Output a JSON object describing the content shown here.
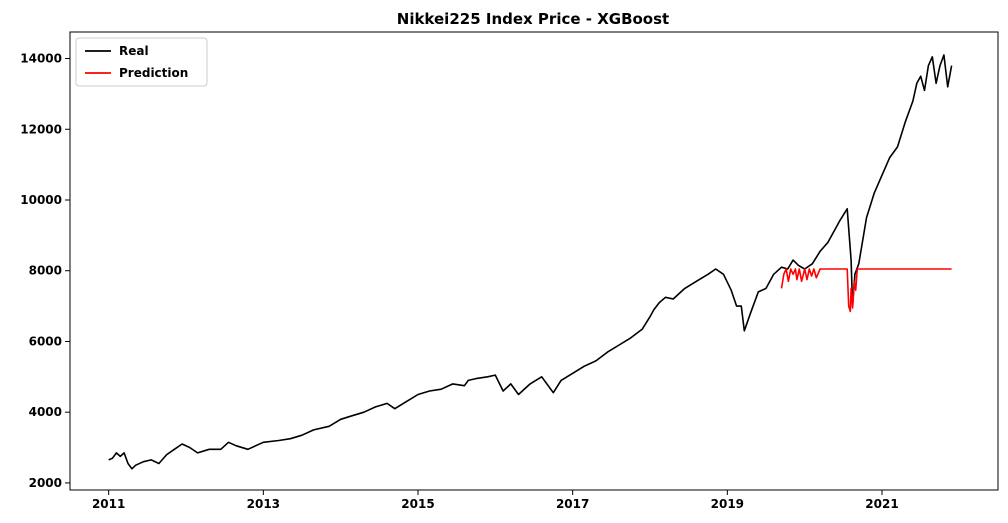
{
  "chart_data": {
    "type": "line",
    "title": "Nikkei225 Index Price - XGBoost",
    "xlabel": "",
    "ylabel": "",
    "xlim": [
      2010.5,
      2022.5
    ],
    "ylim": [
      1800,
      14750
    ],
    "xticks": [
      2011,
      2013,
      2015,
      2017,
      2019,
      2021
    ],
    "xtick_labels": [
      "2011",
      "2013",
      "2015",
      "2017",
      "2019",
      "2021"
    ],
    "yticks": [
      2000,
      4000,
      6000,
      8000,
      10000,
      12000,
      14000
    ],
    "ytick_labels": [
      "2000",
      "4000",
      "6000",
      "8000",
      "10000",
      "12000",
      "14000"
    ],
    "grid": false,
    "legend": {
      "position": "top-left",
      "entries": [
        "Real",
        "Prediction"
      ]
    },
    "series": [
      {
        "name": "Real",
        "color": "#000000",
        "x": [
          2011.0,
          2011.05,
          2011.1,
          2011.15,
          2011.2,
          2011.25,
          2011.3,
          2011.35,
          2011.45,
          2011.55,
          2011.65,
          2011.75,
          2011.85,
          2011.95,
          2012.05,
          2012.15,
          2012.3,
          2012.45,
          2012.55,
          2012.65,
          2012.8,
          2013.0,
          2013.2,
          2013.35,
          2013.5,
          2013.65,
          2013.85,
          2014.0,
          2014.15,
          2014.3,
          2014.45,
          2014.6,
          2014.7,
          2014.85,
          2015.0,
          2015.15,
          2015.3,
          2015.45,
          2015.6,
          2015.65,
          2015.75,
          2015.9,
          2016.0,
          2016.1,
          2016.2,
          2016.3,
          2016.45,
          2016.6,
          2016.75,
          2016.85,
          2017.0,
          2017.15,
          2017.3,
          2017.45,
          2017.6,
          2017.75,
          2017.9,
          2018.0,
          2018.05,
          2018.12,
          2018.2,
          2018.3,
          2018.45,
          2018.6,
          2018.75,
          2018.85,
          2018.95,
          2019.05,
          2019.12,
          2019.18,
          2019.22,
          2019.3,
          2019.4,
          2019.5,
          2019.6,
          2019.7,
          2019.78,
          2019.85,
          2019.92,
          2020.0,
          2020.1,
          2020.2,
          2020.3,
          2020.45,
          2020.55,
          2020.6,
          2020.62,
          2020.65,
          2020.7,
          2020.8,
          2020.9,
          2021.0,
          2021.1,
          2021.2,
          2021.3,
          2021.4,
          2021.45,
          2021.5,
          2021.55,
          2021.6,
          2021.65,
          2021.7,
          2021.75,
          2021.8,
          2021.85,
          2021.9
        ],
        "y": [
          2650,
          2700,
          2850,
          2750,
          2850,
          2550,
          2400,
          2500,
          2600,
          2650,
          2550,
          2800,
          2950,
          3100,
          3000,
          2850,
          2950,
          2950,
          3150,
          3050,
          2950,
          3150,
          3200,
          3250,
          3350,
          3500,
          3600,
          3800,
          3900,
          4000,
          4150,
          4250,
          4100,
          4300,
          4500,
          4600,
          4650,
          4800,
          4750,
          4900,
          4950,
          5000,
          5050,
          4600,
          4800,
          4500,
          4800,
          5000,
          4550,
          4900,
          5100,
          5300,
          5450,
          5700,
          5900,
          6100,
          6350,
          6700,
          6900,
          7100,
          7250,
          7200,
          7500,
          7700,
          7900,
          8050,
          7900,
          7450,
          7000,
          7000,
          6300,
          6800,
          7400,
          7500,
          7900,
          8100,
          8050,
          8300,
          8150,
          8050,
          8200,
          8550,
          8800,
          9400,
          9750,
          8300,
          7000,
          7900,
          8200,
          9500,
          10200,
          10700,
          11200,
          11500,
          12200,
          12800,
          13300,
          13500,
          13100,
          13800,
          14050,
          13300,
          13800,
          14100,
          13200,
          13800
        ]
      },
      {
        "name": "Prediction",
        "color": "#ff0000",
        "x": [
          2019.7,
          2019.73,
          2019.76,
          2019.79,
          2019.82,
          2019.85,
          2019.88,
          2019.9,
          2019.93,
          2019.96,
          2020.0,
          2020.03,
          2020.06,
          2020.09,
          2020.12,
          2020.15,
          2020.2,
          2020.3,
          2020.4,
          2020.5,
          2020.55,
          2020.57,
          2020.59,
          2020.6,
          2020.62,
          2020.64,
          2020.66,
          2020.68,
          2020.7,
          2020.75,
          2020.85,
          2021.0,
          2021.5,
          2021.9
        ],
        "y": [
          7500,
          7900,
          8050,
          7700,
          8050,
          7900,
          8050,
          7750,
          8050,
          7700,
          8050,
          7750,
          8050,
          7850,
          8050,
          7800,
          8050,
          8050,
          8050,
          8050,
          8050,
          7000,
          6850,
          7500,
          6950,
          7700,
          7450,
          8050,
          8050,
          8050,
          8050,
          8050,
          8050,
          8050
        ]
      }
    ]
  }
}
